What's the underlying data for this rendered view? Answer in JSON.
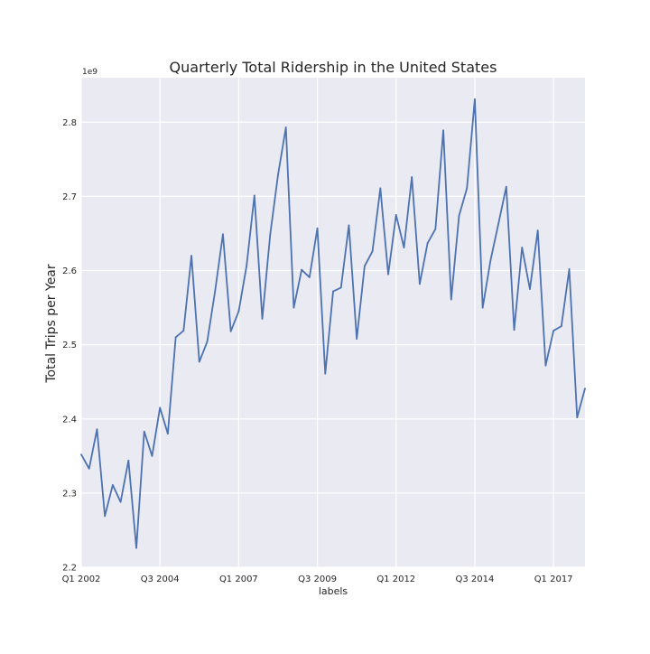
{
  "chart_data": {
    "type": "line",
    "title": "Quarterly Total Ridership in the United States",
    "xlabel": "labels",
    "ylabel": "Total Trips per Year",
    "y_offset_label": "1e9",
    "x_tick_labels": [
      "Q1 2002",
      "Q3 2004",
      "Q1 2007",
      "Q3 2009",
      "Q1 2012",
      "Q3 2014",
      "Q1 2017"
    ],
    "x_tick_indices": [
      0,
      10,
      20,
      30,
      40,
      50,
      60
    ],
    "y_ticks": [
      2.2,
      2.3,
      2.4,
      2.5,
      2.6,
      2.7,
      2.8
    ],
    "ylim": [
      2.2,
      2.86
    ],
    "xlim": [
      0,
      64
    ],
    "grid": true,
    "legend": false,
    "background": "#eaeaf2",
    "grid_color": "#ffffff",
    "series": [
      {
        "color": "#4c72b0",
        "x": [
          0,
          1,
          2,
          3,
          4,
          5,
          6,
          7,
          8,
          9,
          10,
          11,
          12,
          13,
          14,
          15,
          16,
          17,
          18,
          19,
          20,
          21,
          22,
          23,
          24,
          25,
          26,
          27,
          28,
          29,
          30,
          31,
          32,
          33,
          34,
          35,
          36,
          37,
          38,
          39,
          40,
          41,
          42,
          43,
          44,
          45,
          46,
          47,
          48,
          49,
          50,
          51,
          52,
          53,
          54,
          55,
          56,
          57,
          58,
          59,
          60,
          61,
          62,
          63,
          64
        ],
        "values": [
          2.352,
          2.333,
          2.386,
          2.269,
          2.311,
          2.288,
          2.344,
          2.226,
          2.383,
          2.35,
          2.415,
          2.38,
          2.51,
          2.519,
          2.62,
          2.477,
          2.504,
          2.572,
          2.649,
          2.518,
          2.545,
          2.606,
          2.701,
          2.535,
          2.648,
          2.729,
          2.793,
          2.55,
          2.601,
          2.591,
          2.657,
          2.461,
          2.572,
          2.577,
          2.661,
          2.508,
          2.606,
          2.626,
          2.711,
          2.595,
          2.675,
          2.631,
          2.726,
          2.582,
          2.637,
          2.656,
          2.789,
          2.561,
          2.674,
          2.711,
          2.831,
          2.55,
          2.614,
          2.663,
          2.713,
          2.52,
          2.631,
          2.575,
          2.654,
          2.472,
          2.519,
          2.525,
          2.602,
          2.402,
          2.441
        ]
      }
    ]
  }
}
